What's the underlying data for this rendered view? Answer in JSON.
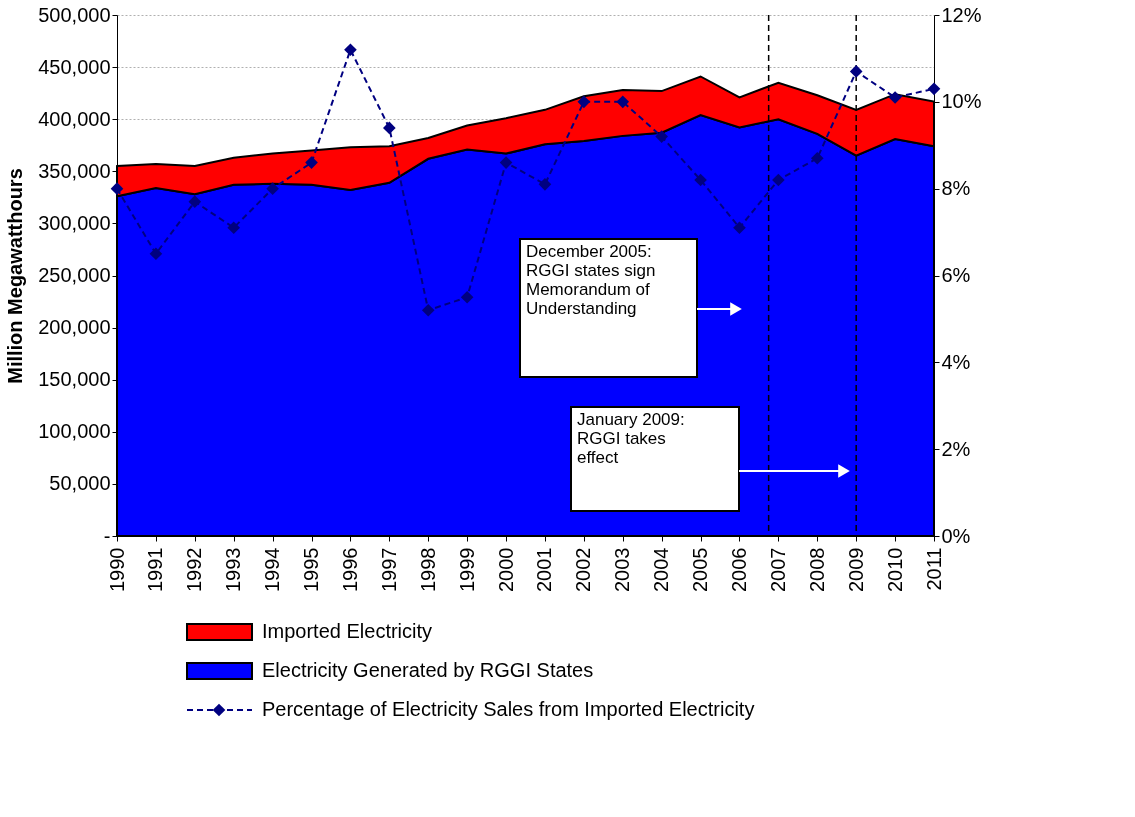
{
  "chart_data": {
    "type": "area",
    "ylabel": "Million Megawatthours",
    "stacked": true,
    "x": [
      1990,
      1991,
      1992,
      1993,
      1994,
      1995,
      1996,
      1997,
      1998,
      1999,
      2000,
      2001,
      2002,
      2003,
      2004,
      2005,
      2006,
      2007,
      2008,
      2009,
      2010,
      2011
    ],
    "xlim": [
      1990,
      2011
    ],
    "xticks": [
      1990,
      1991,
      1992,
      1993,
      1994,
      1995,
      1996,
      1997,
      1998,
      1999,
      2000,
      2001,
      2002,
      2003,
      2004,
      2005,
      2006,
      2007,
      2008,
      2009,
      2010,
      2011
    ],
    "ylim": [
      0,
      500000
    ],
    "yticks": [
      {
        "value": 0,
        "label": "-"
      },
      {
        "value": 50000,
        "label": "50,000"
      },
      {
        "value": 100000,
        "label": "100,000"
      },
      {
        "value": 150000,
        "label": "150,000"
      },
      {
        "value": 200000,
        "label": "200,000"
      },
      {
        "value": 250000,
        "label": "250,000"
      },
      {
        "value": 300000,
        "label": "300,000"
      },
      {
        "value": 350000,
        "label": "350,000"
      },
      {
        "value": 400000,
        "label": "400,000"
      },
      {
        "value": 450000,
        "label": "450,000"
      },
      {
        "value": 500000,
        "label": "500,000"
      }
    ],
    "y2lim": [
      0,
      12
    ],
    "y2ticks": [
      {
        "value": 0,
        "label": "0%"
      },
      {
        "value": 2,
        "label": "2%"
      },
      {
        "value": 4,
        "label": "4%"
      },
      {
        "value": 6,
        "label": "6%"
      },
      {
        "value": 8,
        "label": "8%"
      },
      {
        "value": 10,
        "label": "10%"
      },
      {
        "value": 12,
        "label": "12%"
      }
    ],
    "grid": "y",
    "legend": "bottom",
    "series": [
      {
        "name": "Electricity Generated by RGGI States",
        "color": "#0000ff",
        "values": [
          326000,
          334000,
          328000,
          337000,
          338000,
          337000,
          332000,
          339000,
          362000,
          371000,
          367000,
          376000,
          379000,
          384000,
          387000,
          404000,
          392000,
          400000,
          386000,
          365000,
          381000,
          374000
        ]
      },
      {
        "name": "Imported Electricity",
        "color": "#ff0000",
        "values": [
          29000,
          23000,
          27000,
          26000,
          29000,
          33000,
          41000,
          35000,
          20000,
          23000,
          34000,
          33000,
          43000,
          44000,
          40000,
          37000,
          29000,
          35000,
          37000,
          44000,
          43000,
          43000
        ]
      },
      {
        "name": "Percentage of Electricity Sales from Imported Electricity",
        "type": "line",
        "axis": "y2",
        "color": "#000080",
        "marker": "diamond",
        "line_style": "dashed",
        "values": [
          8.0,
          6.5,
          7.7,
          7.1,
          8.0,
          8.6,
          11.2,
          9.4,
          5.2,
          5.5,
          8.6,
          8.1,
          10.0,
          10.0,
          9.2,
          8.2,
          7.1,
          8.2,
          8.7,
          10.7,
          10.1,
          10.3
        ]
      }
    ],
    "ref_lines": [
      {
        "axis": "x",
        "value": 2006.75,
        "color": "#000000",
        "line_style": "dashed"
      },
      {
        "axis": "x",
        "value": 2009,
        "color": "#000000",
        "line_style": "dashed"
      }
    ],
    "annotations": [
      "December 2005:\nRGGI states sign\nMemorandum of\nUnderstanding",
      "January 2009:\nRGGI takes\neffect"
    ]
  }
}
